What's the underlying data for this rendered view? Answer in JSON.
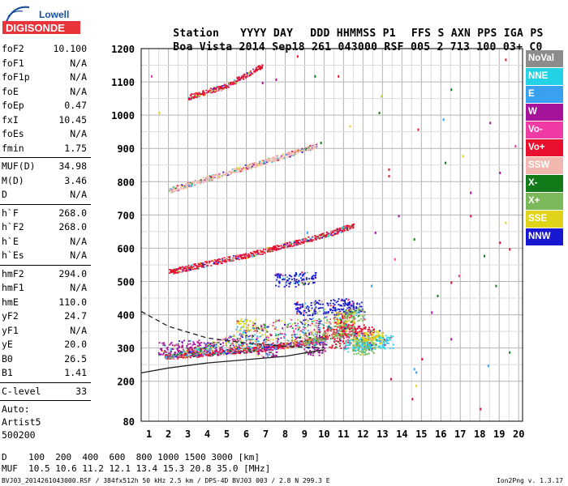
{
  "logo": {
    "line1": "Lowell",
    "line2": "DIGISONDE",
    "accent": "#e8343a",
    "blue": "#1a4f9c"
  },
  "header": {
    "labels": [
      "Station",
      "YYYY",
      "DAY",
      "DDD",
      "HHMMSS",
      "P1",
      "FFS",
      "S",
      "AXN",
      "PPS",
      "IGA",
      "PS"
    ],
    "values": [
      "Boa Vista",
      "2014",
      "Sep18",
      "261",
      "043000",
      "RSF",
      "005",
      "2",
      "713",
      "100",
      "03+",
      "C0"
    ]
  },
  "params": {
    "group1": [
      {
        "k": "foF2",
        "v": "10.100"
      },
      {
        "k": "foF1",
        "v": "N/A"
      },
      {
        "k": "foF1p",
        "v": "N/A"
      },
      {
        "k": "foE",
        "v": "N/A"
      },
      {
        "k": "foEp",
        "v": "0.47"
      },
      {
        "k": "fxI",
        "v": "10.45"
      },
      {
        "k": "foEs",
        "v": "N/A"
      },
      {
        "k": "fmin",
        "v": "1.75"
      }
    ],
    "group2": [
      {
        "k": "MUF(D)",
        "v": "34.98"
      },
      {
        "k": "M(D)",
        "v": "3.46"
      },
      {
        "k": "D",
        "v": "N/A"
      }
    ],
    "group3": [
      {
        "k": "h`F",
        "v": "268.0"
      },
      {
        "k": "h`F2",
        "v": "268.0"
      },
      {
        "k": "h`E",
        "v": "N/A"
      },
      {
        "k": "h`Es",
        "v": "N/A"
      }
    ],
    "group4": [
      {
        "k": "hmF2",
        "v": "294.0"
      },
      {
        "k": "hmF1",
        "v": "N/A"
      },
      {
        "k": "hmE",
        "v": "110.0"
      },
      {
        "k": "yF2",
        "v": "24.7"
      },
      {
        "k": "yF1",
        "v": "N/A"
      },
      {
        "k": "yE",
        "v": "20.0"
      },
      {
        "k": "B0",
        "v": "26.5"
      },
      {
        "k": "B1",
        "v": "1.41"
      }
    ],
    "group5": [
      {
        "k": "C-level",
        "v": "33"
      }
    ],
    "auto": [
      "Auto:",
      "Artist5",
      "500200"
    ]
  },
  "legend": [
    {
      "label": "NoVal",
      "color": "#8c8c8c"
    },
    {
      "label": "NNE",
      "color": "#22d3e6"
    },
    {
      "label": "E",
      "color": "#3aa0f0"
    },
    {
      "label": "W",
      "color": "#a4139a"
    },
    {
      "label": "Vo-",
      "color": "#f03aa5"
    },
    {
      "label": "Vo+",
      "color": "#e8102e"
    },
    {
      "label": "SSW",
      "color": "#f2b8b0"
    },
    {
      "label": "X-",
      "color": "#127a18"
    },
    {
      "label": "X+",
      "color": "#7ab85a"
    },
    {
      "label": "SSE",
      "color": "#e0d41a"
    },
    {
      "label": "NNW",
      "color": "#1818d0"
    }
  ],
  "footer": {
    "d_label": "D",
    "d_values": [
      "100",
      "200",
      "400",
      "600",
      "800",
      "1000",
      "1500",
      "3000"
    ],
    "d_unit": "[km]",
    "muf_label": "MUF",
    "muf_values": [
      "10.5",
      "10.6",
      "11.2",
      "12.1",
      "13.4",
      "15.3",
      "20.8",
      "35.0"
    ],
    "muf_unit": "[MHz]",
    "file_line": "BVJ03_2014261043000.RSF / 384fx512h 50 kHz 2.5 km / DPS-4D BVJ03 003 / 2.8 N 299.3 E",
    "version": "Ion2Png v. 1.3.17"
  },
  "chart_data": {
    "type": "scatter",
    "title": "",
    "xlabel": "",
    "ylabel": "",
    "xlim": [
      0.6,
      20.2
    ],
    "ylim": [
      80,
      1200
    ],
    "x_ticks": [
      1,
      2,
      3,
      4,
      5,
      6,
      7,
      8,
      9,
      10,
      11,
      12,
      13,
      14,
      15,
      16,
      17,
      18,
      19,
      20
    ],
    "y_ticks": [
      80,
      200,
      300,
      400,
      500,
      600,
      700,
      800,
      900,
      1000,
      1100,
      1200
    ],
    "grid": true,
    "legend_position": "right",
    "series": [
      {
        "name": "Vo+",
        "kind": "trace",
        "points": [
          [
            1.8,
            275
          ],
          [
            3,
            280
          ],
          [
            5,
            290
          ],
          [
            7,
            300
          ],
          [
            9,
            318
          ],
          [
            10.2,
            335
          ]
        ]
      },
      {
        "name": "Vo+",
        "kind": "trace",
        "points": [
          [
            2,
            530
          ],
          [
            4,
            555
          ],
          [
            6,
            580
          ],
          [
            8,
            610
          ],
          [
            10,
            640
          ],
          [
            11.5,
            670
          ]
        ]
      },
      {
        "name": "SSW",
        "kind": "trace",
        "points": [
          [
            2,
            775
          ],
          [
            4,
            810
          ],
          [
            6,
            845
          ],
          [
            8,
            880
          ],
          [
            9.6,
            910
          ]
        ]
      },
      {
        "name": "Vo+",
        "kind": "trace",
        "points": [
          [
            3,
            1055
          ],
          [
            5,
            1090
          ],
          [
            6.8,
            1150
          ]
        ]
      },
      {
        "name": "Vo+",
        "kind": "cluster",
        "points": [
          [
            10.5,
            350
          ],
          [
            11,
            360
          ],
          [
            11.5,
            355
          ],
          [
            12,
            345
          ],
          [
            11,
            390
          ],
          [
            10.8,
            320
          ]
        ]
      },
      {
        "name": "NNW",
        "kind": "cluster",
        "points": [
          [
            9,
            420
          ],
          [
            10,
            425
          ],
          [
            11,
            430
          ],
          [
            11.5,
            420
          ],
          [
            8,
            505
          ],
          [
            9,
            510
          ]
        ]
      },
      {
        "name": "NNE",
        "kind": "cluster",
        "points": [
          [
            12,
            315
          ],
          [
            12.5,
            318
          ],
          [
            13,
            320
          ],
          [
            11.5,
            310
          ]
        ]
      },
      {
        "name": "SSE",
        "kind": "cluster",
        "points": [
          [
            11,
            390
          ],
          [
            12,
            330
          ],
          [
            12.5,
            335
          ],
          [
            6,
            370
          ]
        ]
      },
      {
        "name": "X+",
        "kind": "cluster",
        "points": [
          [
            11,
            350
          ],
          [
            11.5,
            400
          ],
          [
            12,
            300
          ],
          [
            9.5,
            330
          ]
        ]
      },
      {
        "name": "W",
        "kind": "cluster",
        "points": [
          [
            2,
            300
          ],
          [
            3,
            305
          ],
          [
            4,
            300
          ],
          [
            7,
            295
          ],
          [
            9.5,
            300
          ]
        ]
      },
      {
        "name": "fit",
        "kind": "line",
        "points": [
          [
            0.6,
            225
          ],
          [
            2,
            240
          ],
          [
            4,
            255
          ],
          [
            6,
            265
          ],
          [
            8,
            275
          ],
          [
            10,
            295
          ]
        ]
      },
      {
        "name": "fit-dashed",
        "kind": "dashed",
        "points": [
          [
            0.6,
            410
          ],
          [
            2,
            365
          ],
          [
            4,
            330
          ],
          [
            6,
            315
          ],
          [
            8,
            305
          ],
          [
            10,
            300
          ]
        ]
      }
    ],
    "scatter_extra": [
      {
        "color": "#e8102e",
        "points": [
          [
            13.3,
            820
          ],
          [
            13.3,
            840
          ],
          [
            13.4,
            210
          ],
          [
            19,
            620
          ],
          [
            19.5,
            600
          ],
          [
            14.5,
            150
          ],
          [
            16.5,
            500
          ],
          [
            17.5,
            700
          ],
          [
            18,
            120
          ],
          [
            8.6,
            1180
          ],
          [
            10.7,
            1120
          ],
          [
            19.3,
            1170
          ],
          [
            15,
            270
          ],
          [
            14.8,
            960
          ]
        ]
      },
      {
        "color": "#a4139a",
        "points": [
          [
            6.8,
            1100
          ],
          [
            7.5,
            1110
          ],
          [
            18.5,
            980
          ],
          [
            19,
            830
          ],
          [
            17.5,
            770
          ],
          [
            16.5,
            330
          ],
          [
            13.8,
            700
          ],
          [
            12.6,
            650
          ],
          [
            15.5,
            410
          ]
        ]
      },
      {
        "color": "#127a18",
        "points": [
          [
            9.5,
            1120
          ],
          [
            9.8,
            920
          ],
          [
            16.2,
            860
          ],
          [
            16.5,
            1080
          ],
          [
            14.6,
            630
          ],
          [
            15.8,
            460
          ],
          [
            19.5,
            290
          ],
          [
            12.8,
            1010
          ],
          [
            18.2,
            580
          ],
          [
            18.8,
            490
          ]
        ]
      },
      {
        "color": "#3aa0f0",
        "points": [
          [
            9.1,
            650
          ],
          [
            14.6,
            240
          ],
          [
            14.7,
            230
          ],
          [
            16.1,
            990
          ],
          [
            12.4,
            490
          ],
          [
            18.4,
            250
          ]
        ]
      },
      {
        "color": "#e0d41a",
        "points": [
          [
            1.5,
            1010
          ],
          [
            19.3,
            680
          ],
          [
            14.7,
            190
          ],
          [
            12.9,
            1060
          ],
          [
            17.1,
            880
          ],
          [
            11.3,
            970
          ]
        ]
      },
      {
        "color": "#f03aa5",
        "points": [
          [
            1.1,
            1120
          ],
          [
            4.5,
            290
          ],
          [
            16.9,
            520
          ],
          [
            19.8,
            910
          ],
          [
            13.6,
            570
          ]
        ]
      }
    ]
  }
}
